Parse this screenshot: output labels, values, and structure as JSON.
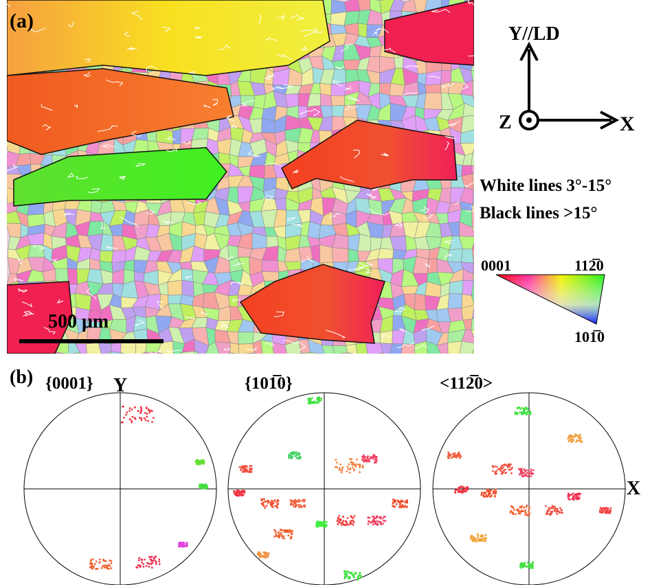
{
  "panel_a": {
    "label": "(a)",
    "scale_bar": "500 μm"
  },
  "axes": {
    "y": "Y//LD",
    "z": "Z",
    "x": "X"
  },
  "legend": {
    "white": "White lines  3°-15°",
    "black": "Black lines  >15°"
  },
  "color_key": {
    "corner_left": "0001",
    "corner_right": "112̅0",
    "corner_bottom": "101̅0"
  },
  "panel_b": {
    "label": "(b)",
    "figures": [
      "{0001}",
      "{101̅0}",
      "<112̅0>"
    ],
    "y_label": "Y",
    "x_label": "X"
  }
}
